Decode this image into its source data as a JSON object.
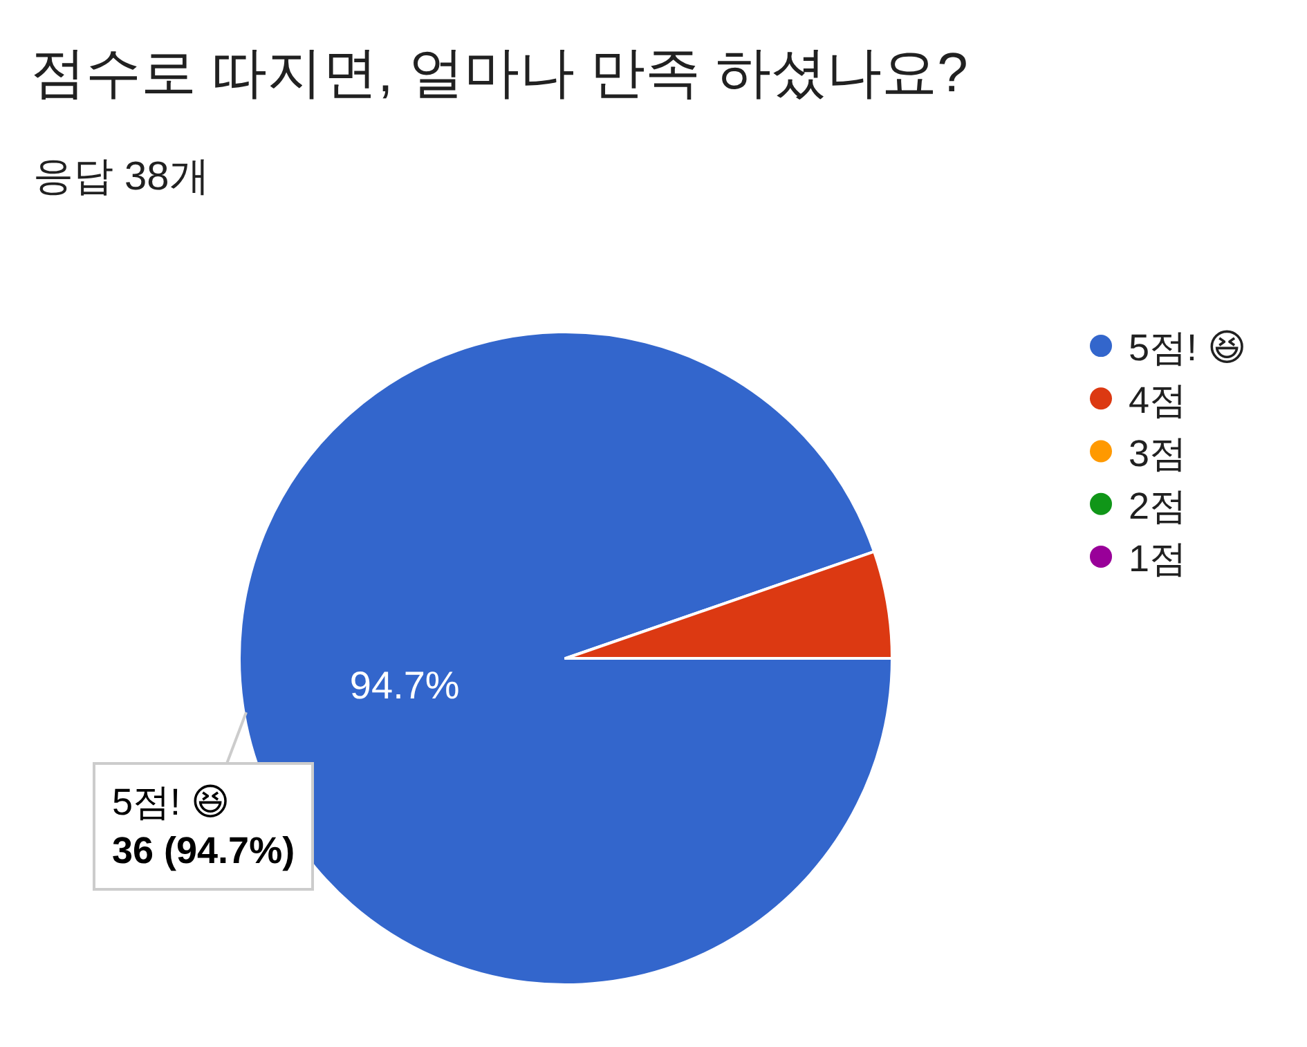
{
  "chart_data": {
    "type": "pie",
    "title": "점수로 따지면, 얼마나 만족 하셨나요?",
    "subtitle": "응답 38개",
    "categories": [
      "5점! 😆",
      "4점",
      "3점",
      "2점",
      "1점"
    ],
    "values": [
      94.7,
      5.3,
      0,
      0,
      0
    ],
    "colors": [
      "#3366cc",
      "#dc3912",
      "#ff9900",
      "#109618",
      "#990099"
    ],
    "value_labels": [
      "94.7%",
      null,
      null,
      null,
      null
    ],
    "annotations": [
      "5점! 😆\n36 (94.7%)"
    ],
    "legend": "top right"
  }
}
